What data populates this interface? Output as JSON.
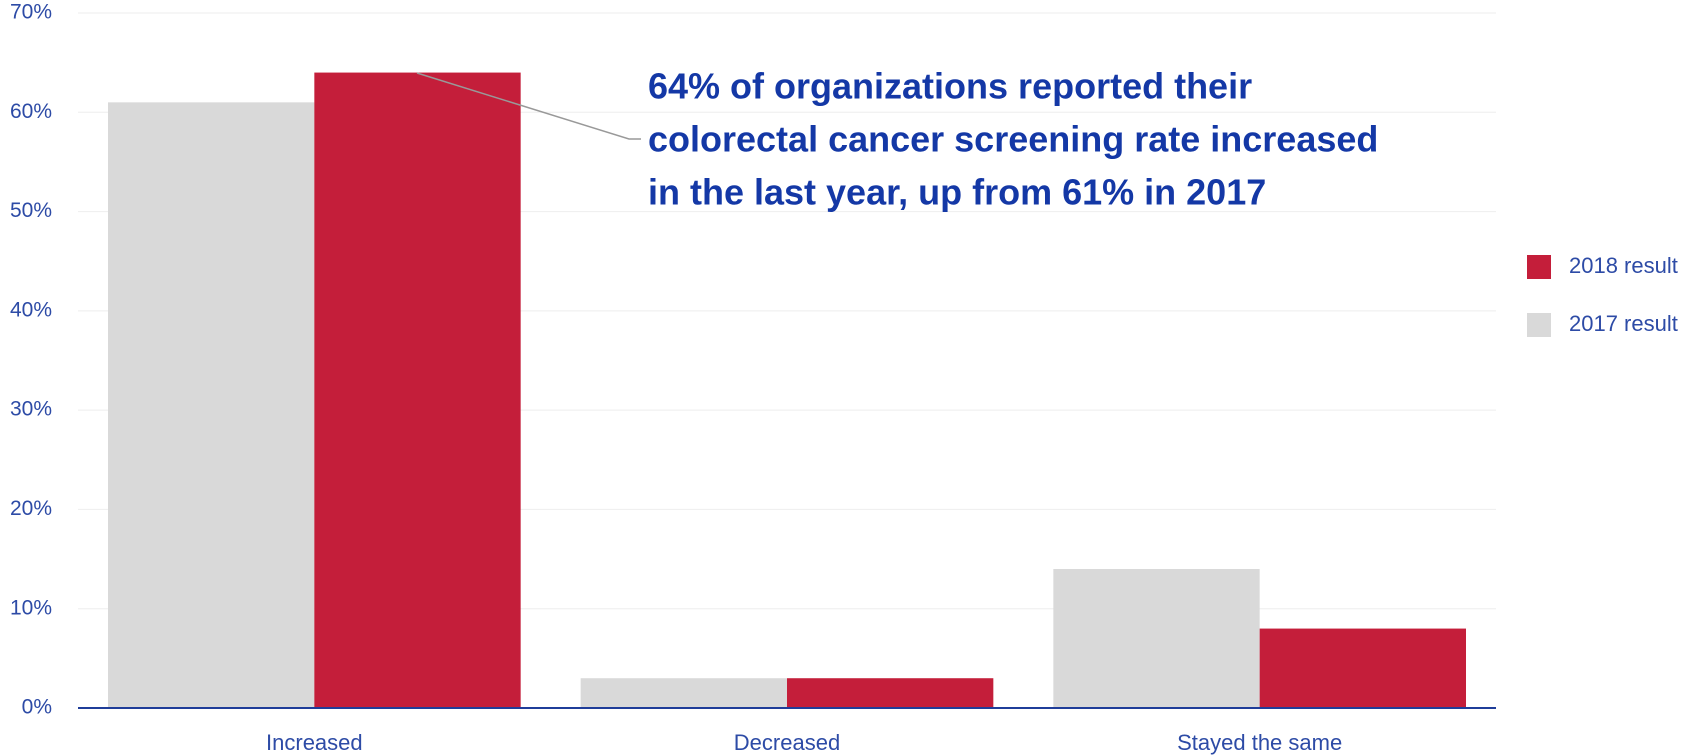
{
  "chart_data": {
    "type": "bar",
    "categories": [
      "Increased",
      "Decreased",
      "Stayed the same"
    ],
    "series": [
      {
        "name": "2017 result",
        "color": "#d9d9d9",
        "values": [
          61,
          3,
          14
        ]
      },
      {
        "name": "2018 result",
        "color": "#c41e3a",
        "values": [
          64,
          3,
          8
        ]
      }
    ],
    "ylim": [
      0,
      70
    ],
    "yticks": [
      {
        "value": 0,
        "label": "0%"
      },
      {
        "value": 10,
        "label": "10%"
      },
      {
        "value": 20,
        "label": "20%"
      },
      {
        "value": 30,
        "label": "30%"
      },
      {
        "value": 40,
        "label": "40%"
      },
      {
        "value": 50,
        "label": "50%"
      },
      {
        "value": 60,
        "label": "60%"
      },
      {
        "value": 70,
        "label": "70%"
      }
    ],
    "grid": true,
    "legend": "right",
    "annotation": [
      "64% of organizations reported their",
      "colorectal cancer screening rate increased",
      "in the last year, up from 61% in 2017"
    ]
  }
}
